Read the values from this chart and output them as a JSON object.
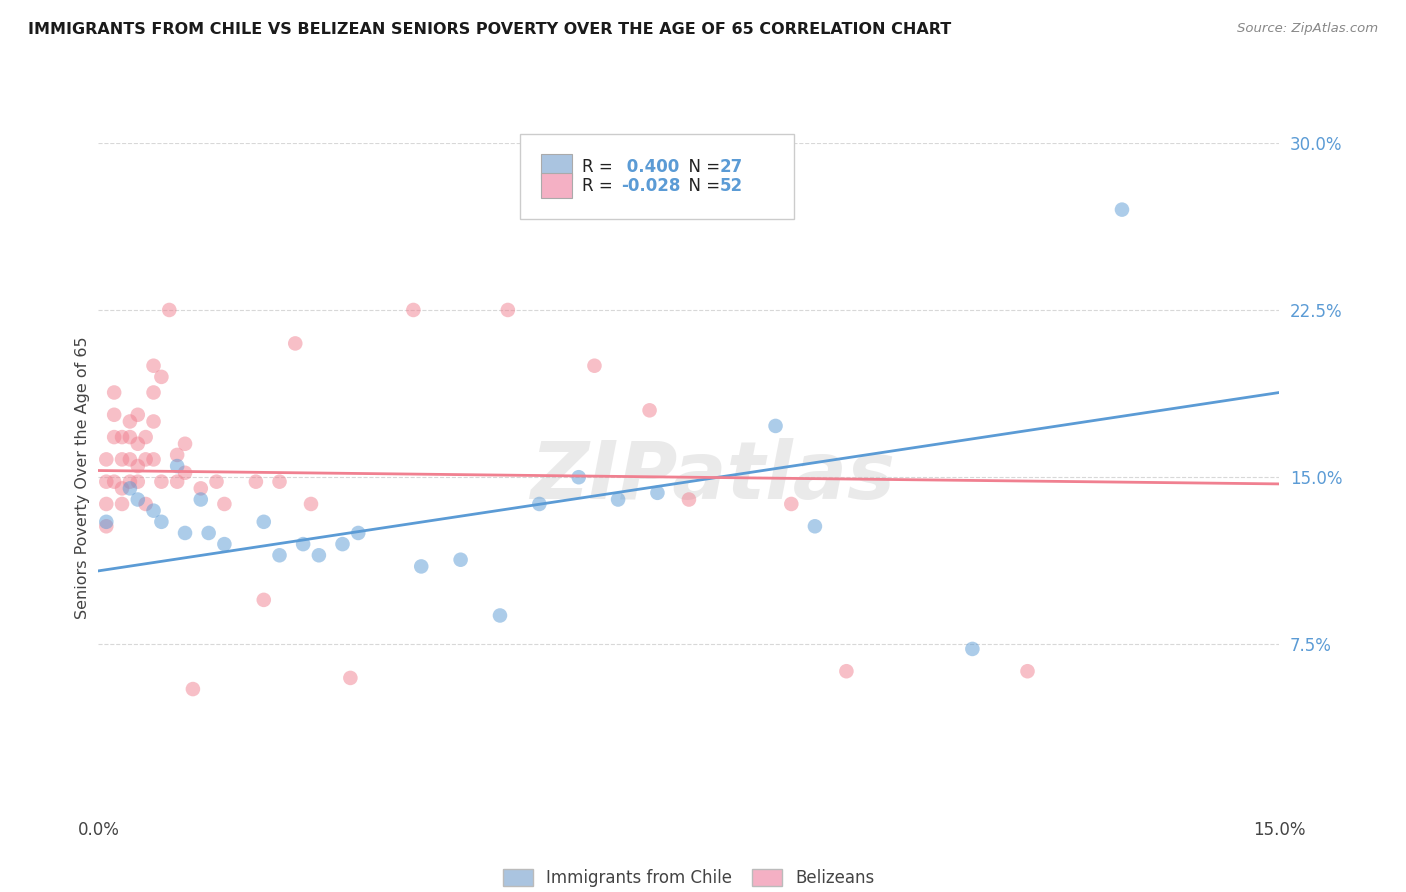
{
  "title": "IMMIGRANTS FROM CHILE VS BELIZEAN SENIORS POVERTY OVER THE AGE OF 65 CORRELATION CHART",
  "source": "Source: ZipAtlas.com",
  "ylabel": "Seniors Poverty Over the Age of 65",
  "x_min": 0.0,
  "x_max": 0.15,
  "y_min": 0.0,
  "y_max": 0.3,
  "y_ticks_right": [
    0.075,
    0.15,
    0.225,
    0.3
  ],
  "y_tick_labels_right": [
    "7.5%",
    "15.0%",
    "22.5%",
    "30.0%"
  ],
  "legend_color1": "#aac4e0",
  "legend_color2": "#f4b0c4",
  "blue_color": "#5b9bd5",
  "pink_color": "#f08090",
  "blue_scatter": [
    [
      0.001,
      0.13
    ],
    [
      0.004,
      0.145
    ],
    [
      0.005,
      0.14
    ],
    [
      0.007,
      0.135
    ],
    [
      0.008,
      0.13
    ],
    [
      0.01,
      0.155
    ],
    [
      0.011,
      0.125
    ],
    [
      0.013,
      0.14
    ],
    [
      0.014,
      0.125
    ],
    [
      0.016,
      0.12
    ],
    [
      0.021,
      0.13
    ],
    [
      0.023,
      0.115
    ],
    [
      0.026,
      0.12
    ],
    [
      0.028,
      0.115
    ],
    [
      0.031,
      0.12
    ],
    [
      0.033,
      0.125
    ],
    [
      0.041,
      0.11
    ],
    [
      0.046,
      0.113
    ],
    [
      0.051,
      0.088
    ],
    [
      0.056,
      0.138
    ],
    [
      0.061,
      0.15
    ],
    [
      0.066,
      0.14
    ],
    [
      0.071,
      0.143
    ],
    [
      0.086,
      0.173
    ],
    [
      0.091,
      0.128
    ],
    [
      0.111,
      0.073
    ],
    [
      0.13,
      0.27
    ]
  ],
  "pink_scatter": [
    [
      0.001,
      0.158
    ],
    [
      0.001,
      0.148
    ],
    [
      0.001,
      0.138
    ],
    [
      0.001,
      0.128
    ],
    [
      0.002,
      0.168
    ],
    [
      0.002,
      0.178
    ],
    [
      0.002,
      0.188
    ],
    [
      0.002,
      0.148
    ],
    [
      0.003,
      0.158
    ],
    [
      0.003,
      0.168
    ],
    [
      0.003,
      0.145
    ],
    [
      0.003,
      0.138
    ],
    [
      0.004,
      0.148
    ],
    [
      0.004,
      0.158
    ],
    [
      0.004,
      0.168
    ],
    [
      0.004,
      0.175
    ],
    [
      0.005,
      0.178
    ],
    [
      0.005,
      0.165
    ],
    [
      0.005,
      0.155
    ],
    [
      0.005,
      0.148
    ],
    [
      0.006,
      0.158
    ],
    [
      0.006,
      0.168
    ],
    [
      0.006,
      0.138
    ],
    [
      0.007,
      0.2
    ],
    [
      0.007,
      0.188
    ],
    [
      0.007,
      0.175
    ],
    [
      0.007,
      0.158
    ],
    [
      0.008,
      0.148
    ],
    [
      0.008,
      0.195
    ],
    [
      0.009,
      0.225
    ],
    [
      0.01,
      0.148
    ],
    [
      0.01,
      0.16
    ],
    [
      0.011,
      0.152
    ],
    [
      0.011,
      0.165
    ],
    [
      0.012,
      0.055
    ],
    [
      0.013,
      0.145
    ],
    [
      0.015,
      0.148
    ],
    [
      0.016,
      0.138
    ],
    [
      0.02,
      0.148
    ],
    [
      0.021,
      0.095
    ],
    [
      0.023,
      0.148
    ],
    [
      0.025,
      0.21
    ],
    [
      0.027,
      0.138
    ],
    [
      0.032,
      0.06
    ],
    [
      0.04,
      0.225
    ],
    [
      0.052,
      0.225
    ],
    [
      0.063,
      0.2
    ],
    [
      0.07,
      0.18
    ],
    [
      0.075,
      0.14
    ],
    [
      0.088,
      0.138
    ],
    [
      0.095,
      0.063
    ],
    [
      0.118,
      0.063
    ]
  ],
  "blue_line": [
    [
      0.0,
      0.108
    ],
    [
      0.15,
      0.188
    ]
  ],
  "pink_line": [
    [
      0.0,
      0.153
    ],
    [
      0.15,
      0.147
    ]
  ],
  "watermark": "ZIPatlas",
  "background_color": "#ffffff",
  "grid_color": "#d8d8d8"
}
